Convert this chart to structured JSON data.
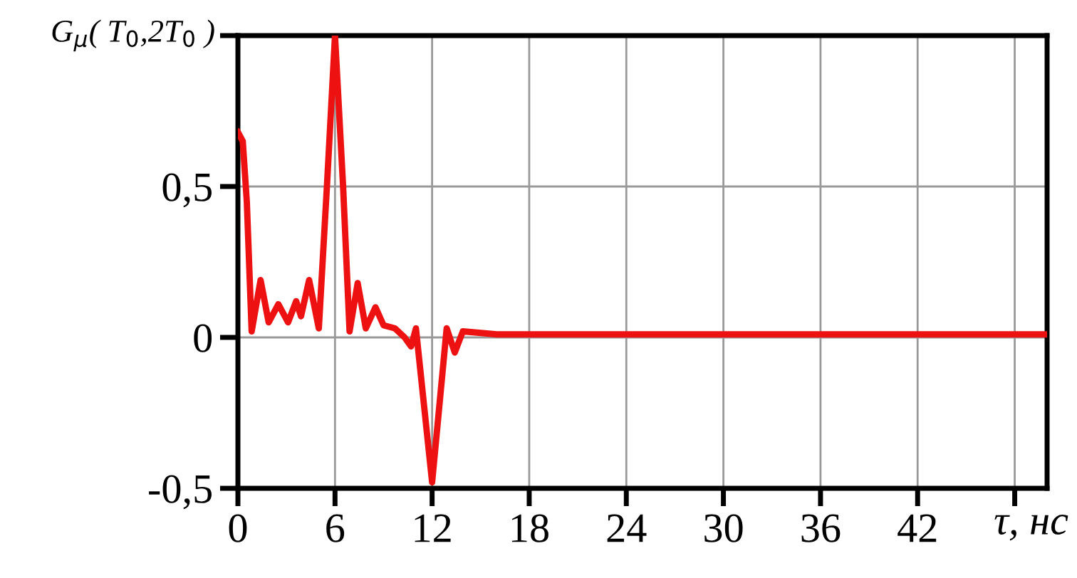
{
  "chart_data": {
    "type": "line",
    "ylabel": "G$_{μ}$( T$_{0}$,2T$_{0}$ )",
    "xlabel": "τ, нс",
    "x": [
      0,
      0.3,
      0.55,
      0.85,
      1.4,
      1.9,
      2.5,
      3.1,
      3.6,
      3.9,
      4.4,
      5.0,
      5.5,
      6.0,
      6.5,
      6.9,
      7.4,
      7.9,
      8.5,
      9.0,
      9.7,
      10.3,
      10.7,
      11.0,
      12.0,
      12.9,
      13.4,
      13.9,
      16,
      20,
      24,
      28,
      32,
      36,
      40,
      44,
      48,
      50
    ],
    "series": [
      {
        "color": "#ee1111",
        "values": [
          0.68,
          0.65,
          0.45,
          0.02,
          0.19,
          0.05,
          0.11,
          0.05,
          0.12,
          0.07,
          0.19,
          0.03,
          0.5,
          1.0,
          0.5,
          0.02,
          0.18,
          0.03,
          0.1,
          0.04,
          0.03,
          0.0,
          -0.03,
          0.03,
          -0.48,
          0.03,
          -0.05,
          0.02,
          0.01,
          0.01,
          0.01,
          0.01,
          0.01,
          0.01,
          0.01,
          0.01,
          0.01,
          0.01
        ]
      }
    ],
    "xlim": [
      0,
      50
    ],
    "xticks": [
      0,
      6,
      12,
      18,
      24,
      30,
      36,
      42,
      {
        "value": 48,
        "label": null
      }
    ],
    "ylim": [
      -0.5,
      1
    ],
    "yticks": [
      {
        "value": -0.5,
        "label": "-0,5"
      },
      0,
      {
        "value": 0.5,
        "label": "0,5"
      },
      {
        "value": 1,
        "label": null
      }
    ],
    "grid": true,
    "line_style": "solid",
    "marker": "none"
  }
}
